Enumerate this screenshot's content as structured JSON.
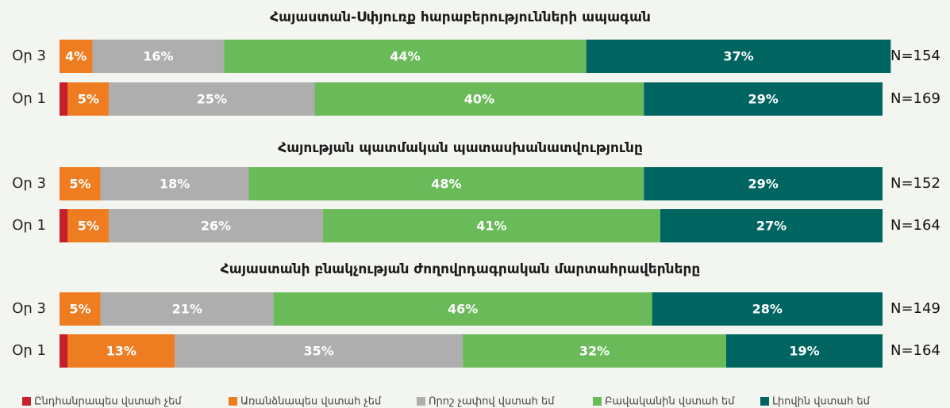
{
  "chart_data": {
    "type": "stacked_bar",
    "xlim": [
      0,
      100
    ],
    "series": [
      {
        "name": "Ընդհանրապես վստահ չեմ",
        "color": "#c8202a"
      },
      {
        "name": "Առանձնապես վստահ չեմ",
        "color": "#ee7d22"
      },
      {
        "name": "Որոշ չափով վստահ եմ",
        "color": "#aeaeae"
      },
      {
        "name": "Բավականին վստահ եմ",
        "color": "#6aba5a"
      },
      {
        "name": "Լիովին վստահ եմ",
        "color": "#006561"
      }
    ],
    "groups": [
      {
        "title": "Հայաստան-Սփյուռք հարաբերությունների ապագան",
        "categories": [
          "Օր 3",
          "Օր 1"
        ],
        "annotations": [
          "N=154",
          "N=169"
        ],
        "series": [
          {
            "values": [
              0,
              1
            ]
          },
          {
            "values": [
              4,
              5
            ],
            "value_labels": [
              "4%",
              "5%"
            ]
          },
          {
            "values": [
              16,
              25
            ],
            "value_labels": [
              "16%",
              "25%"
            ]
          },
          {
            "values": [
              44,
              40
            ],
            "value_labels": [
              "44%",
              "40%"
            ]
          },
          {
            "values": [
              37,
              29
            ],
            "value_labels": [
              "37%",
              "29%"
            ]
          }
        ]
      },
      {
        "title": "Հայության պատմական պատասխանատվությունը",
        "categories": [
          "Օր 3",
          "Օր 1"
        ],
        "annotations": [
          "N=152",
          "N=164"
        ],
        "series": [
          {
            "values": [
              0,
              1
            ]
          },
          {
            "values": [
              5,
              5
            ],
            "value_labels": [
              "5%",
              "5%"
            ]
          },
          {
            "values": [
              18,
              26
            ],
            "value_labels": [
              "18%",
              "26%"
            ]
          },
          {
            "values": [
              48,
              41
            ],
            "value_labels": [
              "48%",
              "41%"
            ]
          },
          {
            "values": [
              29,
              27
            ],
            "value_labels": [
              "29%",
              "27%"
            ]
          }
        ]
      },
      {
        "title": "Հայաստանի բնակչության ժողովրդագրական մարտահրավերները",
        "categories": [
          "Օր 3",
          "Օր 1"
        ],
        "annotations": [
          "N=149",
          "N=164"
        ],
        "series": [
          {
            "values": [
              0,
              1
            ]
          },
          {
            "values": [
              5,
              13
            ],
            "value_labels": [
              "5%",
              "13%"
            ]
          },
          {
            "values": [
              21,
              35
            ],
            "value_labels": [
              "21%",
              "35%"
            ]
          },
          {
            "values": [
              46,
              32
            ],
            "value_labels": [
              "46%",
              "32%"
            ]
          },
          {
            "values": [
              28,
              19
            ],
            "value_labels": [
              "28%",
              "19%"
            ]
          }
        ]
      }
    ]
  }
}
